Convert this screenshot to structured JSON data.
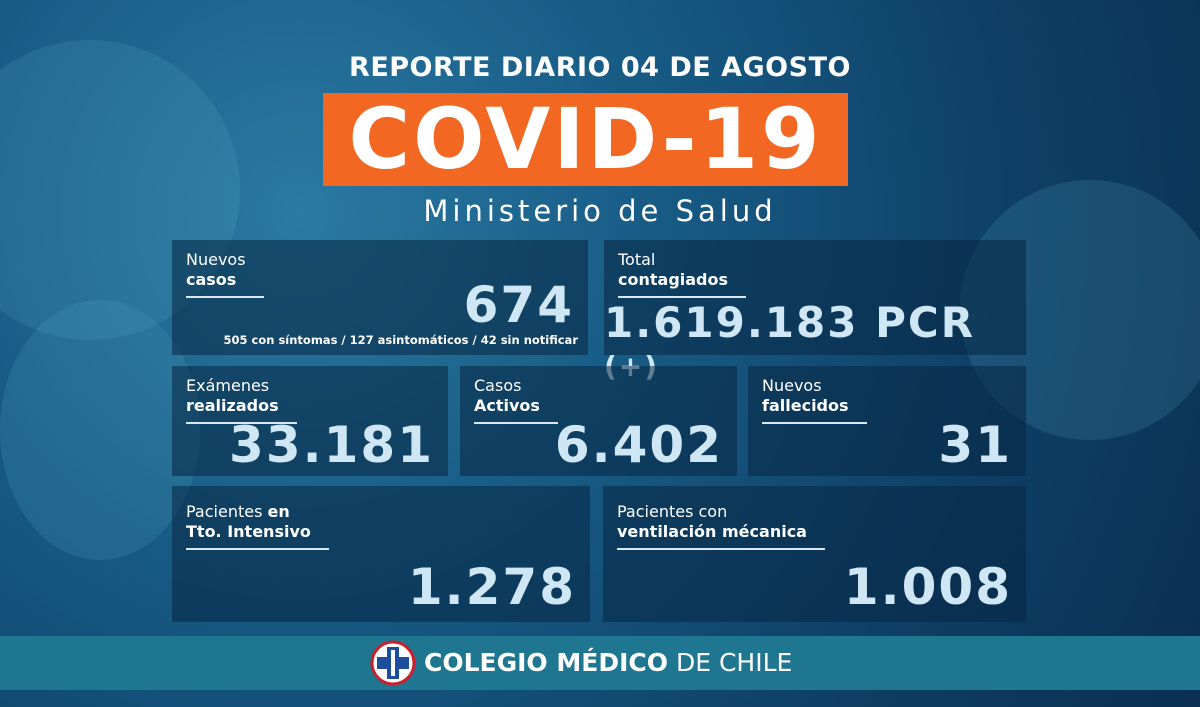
{
  "header": {
    "kicker": "REPORTE DIARIO 04 DE AGOSTO",
    "title": "COVID-19",
    "subtitle": "Ministerio de Salud"
  },
  "cards": [
    {
      "label_light": "Nuevos",
      "label_bold": "casos",
      "value": "674",
      "note": "505 con síntomas / 127 asintomáticos / 42 sin notificar"
    },
    {
      "label_light": "Total",
      "label_bold": "contagiados",
      "value": "1.619.183 PCR",
      "suffix": "(+)"
    },
    {
      "label_light": "Exámenes",
      "label_bold": "realizados",
      "value": "33.181"
    },
    {
      "label_light": "Casos",
      "label_bold": "Activos",
      "value": "6.402"
    },
    {
      "label_light": "Nuevos",
      "label_bold": "fallecidos",
      "value": "31"
    },
    {
      "label_light": "Pacientes",
      "label_inline_bold": "en",
      "label_bold": "Tto. Intensivo",
      "value": "1.278"
    },
    {
      "label_light": "Pacientes con",
      "label_bold": "ventilación mécanica",
      "value": "1.008"
    }
  ],
  "footer": {
    "bold": "COLEGIO MÉDICO",
    "light": "DE CHILE"
  }
}
